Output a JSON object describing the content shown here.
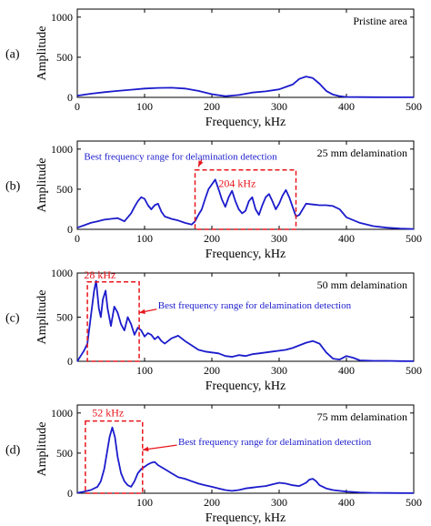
{
  "chart_data": [
    {
      "type": "line",
      "panel_label": "(a)",
      "corner_text": "Pristine area",
      "xlabel": "Frequency, kHz",
      "ylabel": "Amplitude",
      "xlim": [
        0,
        500
      ],
      "ylim": [
        0,
        1100
      ],
      "xticks": [
        0,
        100,
        200,
        300,
        400,
        500
      ],
      "yticks": [
        0,
        500,
        1000
      ],
      "series": [
        {
          "color": "#1c1ccc",
          "x": [
            0,
            20,
            40,
            60,
            80,
            100,
            120,
            140,
            160,
            180,
            200,
            220,
            240,
            260,
            280,
            300,
            310,
            320,
            330,
            340,
            350,
            360,
            370,
            380,
            390,
            400,
            420,
            440,
            460,
            480,
            500
          ],
          "y": [
            20,
            45,
            65,
            80,
            95,
            110,
            118,
            120,
            110,
            80,
            40,
            15,
            30,
            60,
            75,
            100,
            130,
            160,
            230,
            260,
            240,
            170,
            80,
            35,
            15,
            5,
            3,
            2,
            1,
            1,
            1
          ]
        }
      ],
      "boxes": [],
      "annotations": []
    },
    {
      "type": "line",
      "panel_label": "(b)",
      "corner_text": "25 mm delamination",
      "xlabel": "Frequency, kHz",
      "ylabel": "Amplitude",
      "xlim": [
        0,
        500
      ],
      "ylim": [
        0,
        1100
      ],
      "xticks": [
        0,
        100,
        200,
        300,
        400,
        500
      ],
      "yticks": [
        0,
        500,
        1000
      ],
      "series": [
        {
          "color": "#1c1ccc",
          "x": [
            0,
            10,
            20,
            30,
            40,
            50,
            60,
            70,
            80,
            85,
            90,
            95,
            100,
            105,
            110,
            115,
            120,
            125,
            130,
            140,
            150,
            160,
            170,
            175,
            180,
            185,
            190,
            195,
            200,
            205,
            210,
            215,
            220,
            225,
            230,
            235,
            240,
            245,
            250,
            255,
            260,
            265,
            270,
            275,
            280,
            285,
            290,
            295,
            300,
            305,
            310,
            315,
            320,
            325,
            330,
            340,
            350,
            360,
            370,
            380,
            390,
            400,
            420,
            440,
            460,
            480,
            500
          ],
          "y": [
            20,
            50,
            80,
            100,
            120,
            130,
            140,
            100,
            200,
            280,
            350,
            400,
            380,
            300,
            250,
            300,
            320,
            220,
            160,
            130,
            110,
            80,
            60,
            100,
            180,
            250,
            380,
            500,
            560,
            620,
            500,
            370,
            280,
            400,
            480,
            350,
            250,
            200,
            230,
            350,
            400,
            250,
            180,
            300,
            400,
            440,
            350,
            250,
            320,
            420,
            490,
            400,
            280,
            160,
            180,
            320,
            310,
            300,
            300,
            290,
            250,
            150,
            80,
            40,
            20,
            10,
            5
          ]
        }
      ],
      "boxes": [
        [
          175,
          325,
          0,
          740
        ]
      ],
      "annotations": [
        {
          "text": "Best frequency range for delamination detection",
          "color": "#1c1ccc",
          "x": 10,
          "y": 870
        },
        {
          "text": "204 kHz",
          "color": "#e8151b",
          "x": 210,
          "y": 530
        }
      ],
      "arrows": [
        [
          185,
          870,
          180,
          780
        ]
      ]
    },
    {
      "type": "line",
      "panel_label": "(c)",
      "corner_text": "50 mm delamination",
      "xlabel": "Frequency, kHz",
      "ylabel": "Amplitude",
      "xlim": [
        0,
        500
      ],
      "ylim": [
        0,
        1000
      ],
      "xticks": [
        100,
        200,
        300,
        400,
        500
      ],
      "yticks": [
        0,
        500,
        1000
      ],
      "series": [
        {
          "color": "#1c1ccc",
          "x": [
            0,
            5,
            10,
            15,
            20,
            25,
            28,
            32,
            35,
            38,
            42,
            45,
            50,
            55,
            60,
            65,
            70,
            75,
            80,
            85,
            90,
            95,
            100,
            105,
            110,
            115,
            120,
            125,
            130,
            140,
            150,
            160,
            170,
            180,
            190,
            200,
            210,
            220,
            230,
            240,
            250,
            260,
            270,
            280,
            290,
            300,
            310,
            320,
            330,
            340,
            350,
            360,
            370,
            380,
            390,
            400,
            410,
            420,
            440,
            460,
            480,
            500
          ],
          "y": [
            0,
            60,
            120,
            200,
            500,
            800,
            910,
            600,
            500,
            700,
            800,
            600,
            400,
            620,
            550,
            420,
            350,
            500,
            420,
            300,
            380,
            350,
            280,
            320,
            300,
            250,
            280,
            230,
            200,
            260,
            290,
            230,
            180,
            130,
            110,
            100,
            90,
            60,
            50,
            70,
            60,
            80,
            90,
            100,
            110,
            120,
            130,
            150,
            180,
            210,
            230,
            200,
            100,
            30,
            20,
            60,
            40,
            10,
            5,
            5,
            2,
            1
          ]
        }
      ],
      "boxes": [
        [
          15,
          92,
          0,
          900
        ]
      ],
      "annotations": [
        {
          "text": "28 kHz",
          "color": "#e8151b",
          "x": 10,
          "y": 940
        },
        {
          "text": "Best frequency range for delamination detection",
          "color": "#1c1ccc",
          "x": 120,
          "y": 600
        }
      ],
      "arrows": [
        [
          118,
          590,
          92,
          550
        ]
      ]
    },
    {
      "type": "line",
      "panel_label": "(d)",
      "corner_text": "75 mm delamination",
      "xlabel": "Frequency, kHz",
      "ylabel": "Amplitude",
      "xlim": [
        0,
        500
      ],
      "ylim": [
        0,
        1100
      ],
      "xticks": [
        100,
        200,
        300,
        400,
        500
      ],
      "yticks": [
        0,
        500,
        1000
      ],
      "series": [
        {
          "color": "#1c1ccc",
          "x": [
            0,
            10,
            20,
            30,
            35,
            40,
            45,
            48,
            52,
            56,
            60,
            65,
            70,
            75,
            80,
            85,
            90,
            95,
            100,
            105,
            110,
            115,
            120,
            130,
            140,
            150,
            160,
            170,
            180,
            190,
            200,
            210,
            220,
            230,
            240,
            250,
            260,
            270,
            280,
            290,
            300,
            310,
            320,
            330,
            340,
            345,
            350,
            355,
            360,
            370,
            380,
            390,
            400,
            420,
            440,
            460,
            480,
            500
          ],
          "y": [
            5,
            20,
            40,
            80,
            150,
            300,
            550,
            700,
            820,
            700,
            450,
            250,
            150,
            100,
            80,
            150,
            250,
            300,
            330,
            360,
            380,
            390,
            350,
            300,
            250,
            200,
            180,
            150,
            120,
            100,
            80,
            60,
            40,
            30,
            40,
            60,
            70,
            80,
            90,
            110,
            130,
            120,
            100,
            90,
            130,
            170,
            180,
            150,
            100,
            60,
            40,
            30,
            20,
            10,
            5,
            3,
            2,
            1
          ]
        }
      ],
      "boxes": [
        [
          12,
          97,
          0,
          900
        ]
      ],
      "annotations": [
        {
          "text": "52 kHz",
          "color": "#e8151b",
          "x": 22,
          "y": 960
        },
        {
          "text": "Best frequency range for delamination detection",
          "color": "#1c1ccc",
          "x": 150,
          "y": 600
        }
      ],
      "arrows": [
        [
          148,
          600,
          97,
          540
        ]
      ]
    }
  ]
}
